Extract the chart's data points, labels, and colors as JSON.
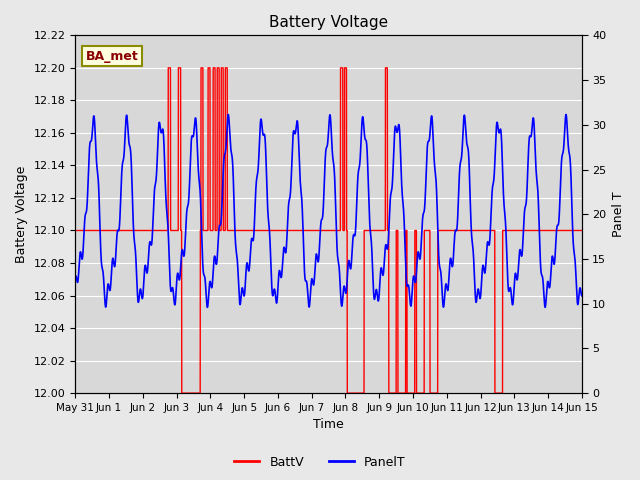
{
  "title": "Battery Voltage",
  "xlabel": "Time",
  "ylabel_left": "Battery Voltage",
  "ylabel_right": "Panel T",
  "ylim_left": [
    12.0,
    12.22
  ],
  "ylim_right": [
    0,
    40
  ],
  "yticks_left": [
    12.0,
    12.02,
    12.04,
    12.06,
    12.08,
    12.1,
    12.12,
    12.14,
    12.16,
    12.18,
    12.2,
    12.22
  ],
  "yticks_right": [
    0,
    5,
    10,
    15,
    20,
    25,
    30,
    35,
    40
  ],
  "xlim": [
    0,
    15
  ],
  "xtick_labels": [
    "May 31",
    "Jun 1",
    "Jun 2",
    "Jun 3",
    "Jun 4",
    "Jun 5",
    "Jun 6",
    "Jun 7",
    "Jun 8",
    "Jun 9",
    "Jun 10",
    "Jun 11",
    "Jun 12",
    "Jun 13",
    "Jun 14",
    "Jun 15"
  ],
  "xtick_positions": [
    0,
    1,
    2,
    3,
    4,
    5,
    6,
    7,
    8,
    9,
    10,
    11,
    12,
    13,
    14,
    15
  ],
  "bg_color": "#e8e8e8",
  "plot_bg_color": "#d8d8d8",
  "batt_color": "#ff0000",
  "panel_color": "#0000ff",
  "annotation_text": "BA_met",
  "legend_labels": [
    "BattV",
    "PanelT"
  ],
  "batt_v_base": 12.1,
  "batt_v_high": 12.2,
  "batt_v_low": 12.0,
  "spike_regions": [
    [
      2.75,
      2.82
    ],
    [
      3.05,
      3.12
    ],
    [
      3.72,
      3.78
    ],
    [
      3.93,
      3.99
    ],
    [
      4.08,
      4.14
    ],
    [
      4.2,
      4.26
    ],
    [
      4.32,
      4.38
    ],
    [
      4.44,
      4.5
    ],
    [
      7.85,
      7.92
    ],
    [
      7.97,
      8.03
    ],
    [
      9.18,
      9.24
    ]
  ],
  "drop_regions": [
    [
      3.15,
      3.7
    ],
    [
      8.05,
      8.55
    ],
    [
      9.28,
      9.5
    ],
    [
      9.55,
      9.78
    ],
    [
      9.82,
      10.05
    ],
    [
      10.1,
      10.33
    ],
    [
      10.5,
      10.73
    ],
    [
      12.42,
      12.65
    ]
  ]
}
